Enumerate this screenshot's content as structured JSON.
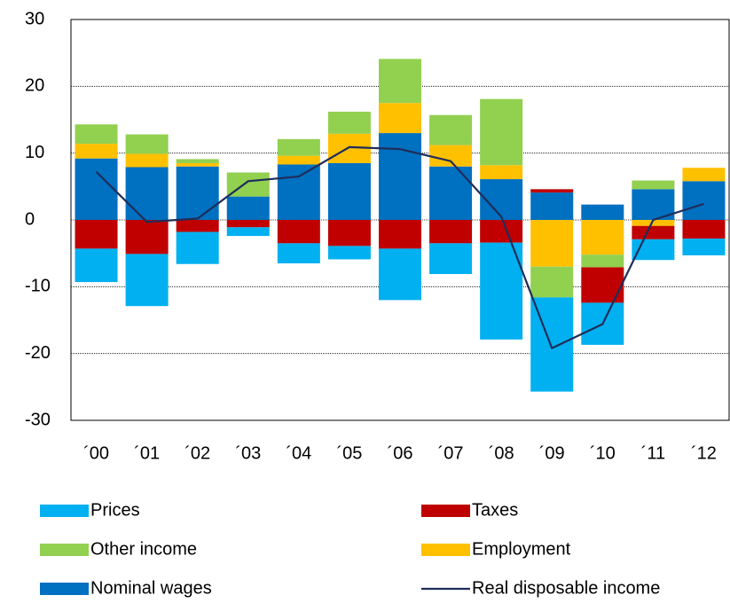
{
  "chart_data": {
    "type": "bar",
    "categories": [
      "´00",
      "´01",
      "´02",
      "´03",
      "´04",
      "´05",
      "´06",
      "´07",
      "´08",
      "´09",
      "´10",
      "´11",
      "´12"
    ],
    "series": [
      {
        "name": "Nominal wages",
        "color": "#0070c0",
        "values": [
          9.2,
          7.9,
          8.0,
          3.5,
          8.3,
          8.5,
          13.0,
          8.0,
          6.1,
          4.1,
          2.3,
          4.6,
          5.8
        ]
      },
      {
        "name": "Employment",
        "color": "#ffc000",
        "values": [
          2.2,
          2.0,
          0.5,
          0,
          1.3,
          4.4,
          4.5,
          3.2,
          2.1,
          -7.0,
          -5.2,
          -0.9,
          2.0
        ]
      },
      {
        "name": "Other income",
        "color": "#92d050",
        "values": [
          2.9,
          2.9,
          0.6,
          3.6,
          2.5,
          3.3,
          6.6,
          4.5,
          9.9,
          -4.6,
          -1.9,
          1.3,
          0
        ]
      },
      {
        "name": "Taxes",
        "color": "#c00000",
        "values": [
          -4.3,
          -5.1,
          -1.8,
          -1.1,
          -3.5,
          -3.9,
          -4.3,
          -3.5,
          -3.4,
          0.5,
          -5.3,
          -2.0,
          -2.8
        ]
      },
      {
        "name": "Prices",
        "color": "#00b0f0",
        "values": [
          -5.0,
          -7.8,
          -4.8,
          -1.3,
          -3.0,
          -2.0,
          -7.7,
          -4.6,
          -14.5,
          -14.1,
          -6.3,
          -3.1,
          -2.5
        ]
      },
      {
        "name": "Real disposable income",
        "color": "#1f2d5a",
        "type": "line",
        "values": [
          7.2,
          -0.3,
          0.2,
          5.8,
          6.5,
          10.9,
          10.6,
          8.8,
          0.5,
          -19.2,
          -15.6,
          0.0,
          2.4
        ]
      }
    ],
    "ylim": [
      -30,
      30
    ],
    "yticks": [
      -30,
      -20,
      -10,
      0,
      10,
      20,
      30
    ],
    "grid": true,
    "stacked": true
  }
}
